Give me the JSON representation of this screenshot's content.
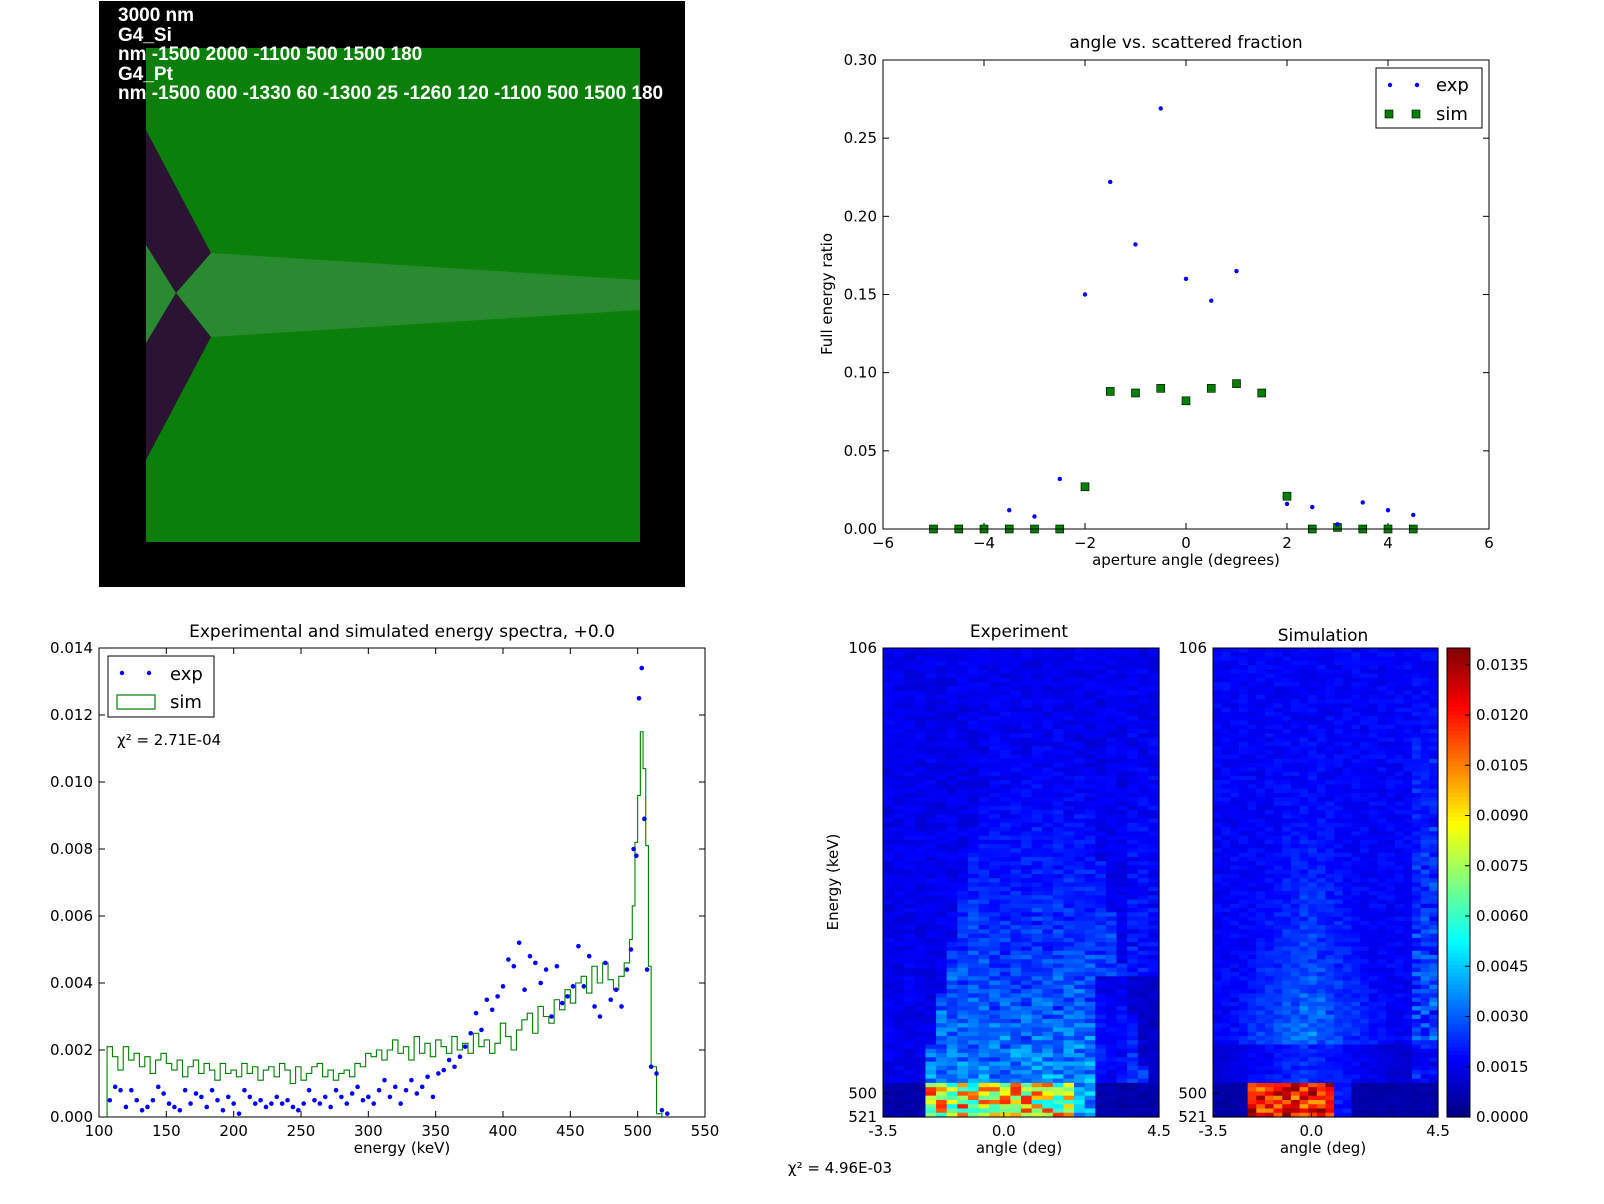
{
  "geometry_panel": {
    "label_lines": [
      "3000 nm",
      "G4_Si",
      "nm -1500 2000 -1100 500 1500 180",
      "G4_Pt",
      "nm -1500 600 -1330 60 -1300 25 -1260 120 -1100 500 1500 180"
    ],
    "colors": {
      "background": "#000000",
      "silicon": "#0a7f0a",
      "platinum": "#2b1333",
      "beam": "#2a8a30"
    }
  },
  "chart_data": [
    {
      "id": "scatter",
      "type": "scatter",
      "title": "angle vs. scattered fraction",
      "xlabel": "aperture angle (degrees)",
      "ylabel": "Full energy ratio",
      "xlim": [
        -6,
        6
      ],
      "ylim": [
        0,
        0.3
      ],
      "xticks": [
        "−6",
        "−4",
        "−2",
        "0",
        "2",
        "4",
        "6"
      ],
      "yticks": [
        "0.00",
        "0.05",
        "0.10",
        "0.15",
        "0.20",
        "0.25",
        "0.30"
      ],
      "legend_position": "top-right",
      "series": [
        {
          "name": "exp",
          "marker": "dot",
          "color": "#0000ff",
          "x": [
            -3.5,
            -3.0,
            -2.5,
            -2.0,
            -1.5,
            -1.0,
            -0.5,
            0.0,
            0.5,
            1.0,
            2.0,
            2.5,
            3.0,
            3.5,
            4.0,
            4.5
          ],
          "y": [
            0.012,
            0.008,
            0.032,
            0.15,
            0.222,
            0.182,
            0.269,
            0.16,
            0.146,
            0.165,
            0.016,
            0.014,
            0.003,
            0.017,
            0.012,
            0.009
          ]
        },
        {
          "name": "sim",
          "marker": "square",
          "color": "#007f00",
          "x": [
            -5.0,
            -4.5,
            -4.0,
            -3.5,
            -3.0,
            -2.5,
            -2.0,
            -1.5,
            -1.0,
            -0.5,
            0.0,
            0.5,
            1.0,
            1.5,
            2.0,
            2.5,
            3.0,
            3.5,
            4.0,
            4.5
          ],
          "y": [
            0.0,
            0.0,
            0.0,
            0.0,
            0.0,
            0.0,
            0.027,
            0.088,
            0.087,
            0.09,
            0.082,
            0.09,
            0.093,
            0.087,
            0.021,
            0.0,
            0.001,
            0.0,
            0.0,
            0.0
          ]
        }
      ]
    },
    {
      "id": "spectrum",
      "type": "line",
      "title": "Experimental and simulated energy spectra, +0.0",
      "xlabel": "energy (keV)",
      "ylabel": "",
      "xlim": [
        100,
        550
      ],
      "ylim": [
        0,
        0.014
      ],
      "xticks": [
        "100",
        "150",
        "200",
        "250",
        "300",
        "350",
        "400",
        "450",
        "500",
        "550"
      ],
      "yticks": [
        "0.000",
        "0.002",
        "0.004",
        "0.006",
        "0.008",
        "0.010",
        "0.012",
        "0.014"
      ],
      "legend_position": "top-left",
      "annotation": "χ² = 2.71E-04",
      "series": [
        {
          "name": "exp",
          "marker": "dot",
          "color": "#0000ff",
          "x": [
            108,
            112,
            116,
            120,
            124,
            128,
            132,
            136,
            140,
            144,
            148,
            152,
            156,
            160,
            164,
            168,
            172,
            176,
            180,
            184,
            188,
            192,
            196,
            200,
            204,
            208,
            212,
            216,
            220,
            224,
            228,
            232,
            236,
            240,
            244,
            248,
            252,
            256,
            260,
            264,
            268,
            272,
            276,
            280,
            284,
            288,
            292,
            296,
            300,
            304,
            308,
            312,
            316,
            320,
            324,
            328,
            332,
            336,
            340,
            344,
            348,
            352,
            356,
            360,
            364,
            368,
            372,
            376,
            380,
            384,
            388,
            392,
            396,
            400,
            404,
            408,
            412,
            416,
            420,
            424,
            428,
            432,
            436,
            440,
            444,
            448,
            452,
            456,
            460,
            464,
            468,
            472,
            476,
            480,
            484,
            488,
            492,
            495,
            497,
            499,
            501,
            503,
            505,
            507,
            510,
            514,
            518,
            522
          ],
          "y": [
            0.0005,
            0.0009,
            0.0008,
            0.0003,
            0.0008,
            0.0005,
            0.0002,
            0.0003,
            0.0005,
            0.0009,
            0.0007,
            0.0004,
            0.0003,
            0.0002,
            0.0008,
            0.0004,
            0.0007,
            0.0006,
            0.0003,
            0.0008,
            0.0005,
            0.0002,
            0.0006,
            0.0004,
            0.0001,
            0.0008,
            0.0006,
            0.0004,
            0.0005,
            0.0003,
            0.0004,
            0.0006,
            0.0004,
            0.0005,
            0.0003,
            0.0002,
            0.0004,
            0.0008,
            0.0005,
            0.0004,
            0.0006,
            0.0003,
            0.0008,
            0.0006,
            0.0004,
            0.0007,
            0.0009,
            0.0005,
            0.0006,
            0.0004,
            0.0008,
            0.0011,
            0.0006,
            0.0009,
            0.0004,
            0.0008,
            0.0011,
            0.0007,
            0.0009,
            0.0012,
            0.0006,
            0.0013,
            0.0014,
            0.0017,
            0.0015,
            0.0018,
            0.0021,
            0.0025,
            0.0031,
            0.0026,
            0.0035,
            0.0032,
            0.0036,
            0.0039,
            0.0047,
            0.0045,
            0.0052,
            0.0038,
            0.0048,
            0.0046,
            0.004,
            0.0044,
            0.003,
            0.0045,
            0.0034,
            0.0036,
            0.0039,
            0.0051,
            0.0039,
            0.0048,
            0.0033,
            0.003,
            0.0046,
            0.0035,
            0.0038,
            0.0033,
            0.0044,
            0.005,
            0.008,
            0.0078,
            0.0125,
            0.0134,
            0.0089,
            0.0044,
            0.0015,
            0.0013,
            0.0002,
            0.0001
          ]
        },
        {
          "name": "sim",
          "marker": "step",
          "color": "#007f00",
          "x": [
            106,
            110,
            114,
            118,
            122,
            126,
            130,
            134,
            138,
            142,
            146,
            150,
            154,
            158,
            162,
            166,
            170,
            174,
            178,
            182,
            186,
            190,
            194,
            198,
            202,
            206,
            210,
            214,
            218,
            222,
            226,
            230,
            234,
            238,
            242,
            246,
            250,
            254,
            258,
            262,
            266,
            270,
            274,
            278,
            282,
            286,
            290,
            294,
            298,
            302,
            306,
            310,
            314,
            318,
            322,
            326,
            330,
            334,
            338,
            342,
            346,
            350,
            354,
            358,
            362,
            366,
            370,
            374,
            378,
            382,
            386,
            390,
            394,
            398,
            402,
            406,
            410,
            414,
            418,
            422,
            426,
            430,
            434,
            438,
            442,
            446,
            450,
            454,
            458,
            462,
            466,
            470,
            474,
            478,
            482,
            486,
            490,
            494,
            496,
            498,
            500,
            502,
            504,
            506,
            508,
            510,
            514
          ],
          "y": [
            0.0021,
            0.0018,
            0.0014,
            0.0021,
            0.0017,
            0.0019,
            0.0015,
            0.0018,
            0.0013,
            0.0017,
            0.0019,
            0.0016,
            0.0014,
            0.0017,
            0.0012,
            0.0015,
            0.0017,
            0.0013,
            0.0016,
            0.0014,
            0.0011,
            0.0016,
            0.0013,
            0.0014,
            0.0012,
            0.0016,
            0.0013,
            0.0015,
            0.0011,
            0.0014,
            0.0015,
            0.0012,
            0.0016,
            0.0014,
            0.001,
            0.0015,
            0.0011,
            0.0013,
            0.0015,
            0.0016,
            0.0012,
            0.0014,
            0.0011,
            0.0013,
            0.0014,
            0.0012,
            0.0016,
            0.0015,
            0.0019,
            0.0018,
            0.002,
            0.0017,
            0.002,
            0.0023,
            0.0019,
            0.0021,
            0.0017,
            0.0024,
            0.0019,
            0.0022,
            0.0018,
            0.0023,
            0.0021,
            0.0019,
            0.0024,
            0.002,
            0.0022,
            0.0019,
            0.0025,
            0.0021,
            0.0023,
            0.0019,
            0.0022,
            0.0028,
            0.0024,
            0.002,
            0.0026,
            0.0029,
            0.0031,
            0.0025,
            0.0033,
            0.003,
            0.0028,
            0.0035,
            0.0032,
            0.0038,
            0.0034,
            0.004,
            0.0042,
            0.0037,
            0.0045,
            0.004,
            0.0046,
            0.0041,
            0.0038,
            0.0042,
            0.0046,
            0.0053,
            0.0063,
            0.0082,
            0.0096,
            0.0115,
            0.0104,
            0.0081,
            0.0045,
            0.0015,
            0.0001
          ]
        }
      ]
    },
    {
      "id": "heatmaps",
      "type": "heatmap",
      "ylabel": "Energy (keV)",
      "footer": "χ² = 4.96E-03",
      "yticks": [
        "106",
        "500",
        "521"
      ],
      "ytick_values": [
        106,
        500,
        521
      ],
      "ylim": [
        106,
        521
      ],
      "xticks": [
        "-3.5",
        "0.0",
        "4.5"
      ],
      "xtick_values": [
        -3.5,
        0.0,
        4.5
      ],
      "xlim": [
        -3.5,
        4.5
      ],
      "xlabel": "angle (deg)",
      "colorbar_ticks": [
        "0.0000",
        "0.0015",
        "0.0030",
        "0.0045",
        "0.0060",
        "0.0075",
        "0.0090",
        "0.0105",
        "0.0120",
        "0.0135"
      ],
      "colorbar_values": [
        0,
        0.0015,
        0.003,
        0.0045,
        0.006,
        0.0075,
        0.009,
        0.0105,
        0.012,
        0.0135
      ],
      "colorbar_max": 0.014,
      "colormap": "jet",
      "panels": [
        {
          "name": "experiment",
          "title": "Experiment"
        },
        {
          "name": "simulation",
          "title": "Simulation"
        }
      ]
    }
  ]
}
